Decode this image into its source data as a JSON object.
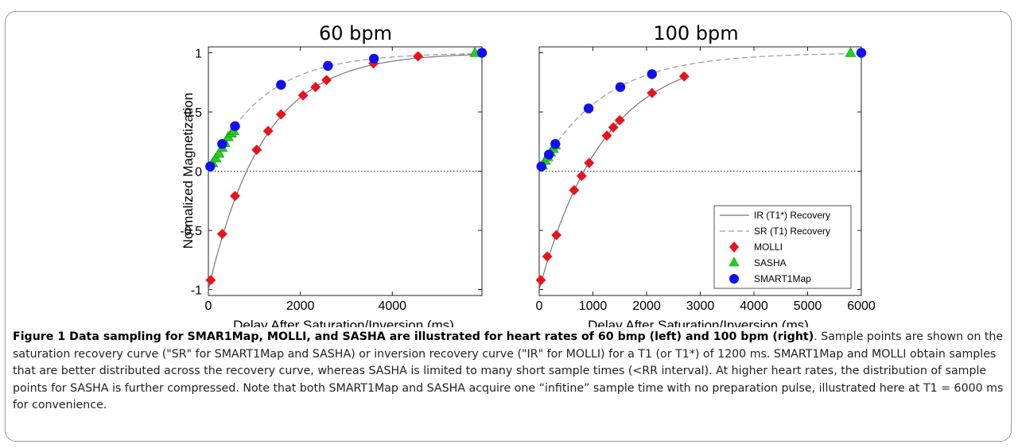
{
  "chart_data": [
    {
      "type": "line",
      "title": "60 bpm",
      "xlabel": "Delay After Saturation/Inversion (ms)",
      "ylabel": "Normalized Magnetization",
      "xlim": [
        0,
        5950
      ],
      "ylim": [
        -1.05,
        1.05
      ],
      "xticks": [
        0,
        2000,
        4000
      ],
      "yticks": [
        -1,
        -0.5,
        0,
        0.5,
        1
      ],
      "ytick_labels": [
        "-1",
        "-0.5",
        "0",
        "0.5",
        "1"
      ],
      "zero_line": true,
      "curves": {
        "ir_t1star_ms": 1200,
        "sr_t1_ms": 1200
      },
      "series": [
        {
          "name": "MOLLI",
          "marker": "diamond",
          "color": "#e8141b",
          "points": [
            [
              50,
              -0.92
            ],
            [
              300,
              -0.53
            ],
            [
              580,
              -0.21
            ],
            [
              1050,
              0.18
            ],
            [
              1300,
              0.34
            ],
            [
              1580,
              0.48
            ],
            [
              2060,
              0.64
            ],
            [
              2330,
              0.71
            ],
            [
              2570,
              0.77
            ],
            [
              3590,
              0.91
            ],
            [
              4560,
              0.97
            ]
          ]
        },
        {
          "name": "SASHA",
          "marker": "triangle",
          "color": "#22d11e",
          "points": [
            [
              90,
              0.07
            ],
            [
              160,
              0.11
            ],
            [
              230,
              0.15
            ],
            [
              300,
              0.2
            ],
            [
              360,
              0.24
            ],
            [
              430,
              0.29
            ],
            [
              500,
              0.32
            ],
            [
              550,
              0.34
            ],
            [
              5800,
              1.0
            ]
          ]
        },
        {
          "name": "SMART1Map",
          "marker": "circle",
          "color": "#1010ee",
          "points": [
            [
              40,
              0.04
            ],
            [
              300,
              0.23
            ],
            [
              580,
              0.38
            ],
            [
              1580,
              0.73
            ],
            [
              2600,
              0.89
            ],
            [
              3600,
              0.95
            ],
            [
              5950,
              1.0
            ]
          ]
        }
      ]
    },
    {
      "type": "line",
      "title": "100 bpm",
      "xlabel": "Delay After Saturation/Inversion (ms)",
      "ylabel": "",
      "xlim": [
        0,
        6000
      ],
      "ylim": [
        -1.05,
        1.05
      ],
      "xticks": [
        0,
        1000,
        2000,
        3000,
        4000,
        5000,
        6000
      ],
      "zero_line": true,
      "curves": {
        "ir_t1star_ms": 1200,
        "sr_t1_ms": 1200,
        "ir_end_ms": 2700
      },
      "series": [
        {
          "name": "MOLLI",
          "marker": "diamond",
          "color": "#e8141b",
          "points": [
            [
              30,
              -0.92
            ],
            [
              150,
              -0.72
            ],
            [
              320,
              -0.54
            ],
            [
              650,
              -0.16
            ],
            [
              790,
              -0.04
            ],
            [
              930,
              0.07
            ],
            [
              1260,
              0.3
            ],
            [
              1380,
              0.37
            ],
            [
              1500,
              0.43
            ],
            [
              2100,
              0.66
            ],
            [
              2700,
              0.8
            ]
          ]
        },
        {
          "name": "SASHA",
          "marker": "triangle",
          "color": "#22d11e",
          "points": [
            [
              60,
              0.05
            ],
            [
              110,
              0.09
            ],
            [
              160,
              0.12
            ],
            [
              210,
              0.16
            ],
            [
              260,
              0.19
            ],
            [
              300,
              0.22
            ],
            [
              5800,
              1.0
            ]
          ]
        },
        {
          "name": "SMART1Map",
          "marker": "circle",
          "color": "#1010ee",
          "points": [
            [
              40,
              0.04
            ],
            [
              180,
              0.14
            ],
            [
              300,
              0.23
            ],
            [
              920,
              0.53
            ],
            [
              1510,
              0.71
            ],
            [
              2100,
              0.82
            ],
            [
              6000,
              1.0
            ]
          ]
        }
      ]
    }
  ],
  "legend": {
    "placement": "bottom-right",
    "entries": [
      "IR (T1*) Recovery",
      "SR (T1) Recovery",
      "MOLLI",
      "SASHA",
      "SMART1Map"
    ]
  },
  "colors": {
    "molli": "#e8141b",
    "sasha": "#22d11e",
    "smart1map": "#1010ee",
    "ir_curve": "#777777",
    "sr_curve": "#a0a0a0"
  },
  "caption": {
    "lead": "Figure 1 Data sampling for SMAR1Map, MOLLI, and SASHA are illustrated for heart rates of 60 bmp (left) and 100 bpm (right)",
    "body": ". Sample points are shown on the saturation recovery curve (\"SR\" for SMART1Map and SASHA) or inversion recovery curve (\"IR\" for MOLLI) for a T1 (or T1*) of 1200 ms. SMART1Map and MOLLI obtain samples that are better distributed across the recovery curve, whereas SASHA is limited to many short sample times (<RR interval). At higher heart rates, the distribution of sample points for SASHA is further compressed. Note that both SMART1Map and SASHA acquire one “infitine” sample time with no preparation pulse, illustrated here at T1 = 6000 ms for convenience."
  }
}
